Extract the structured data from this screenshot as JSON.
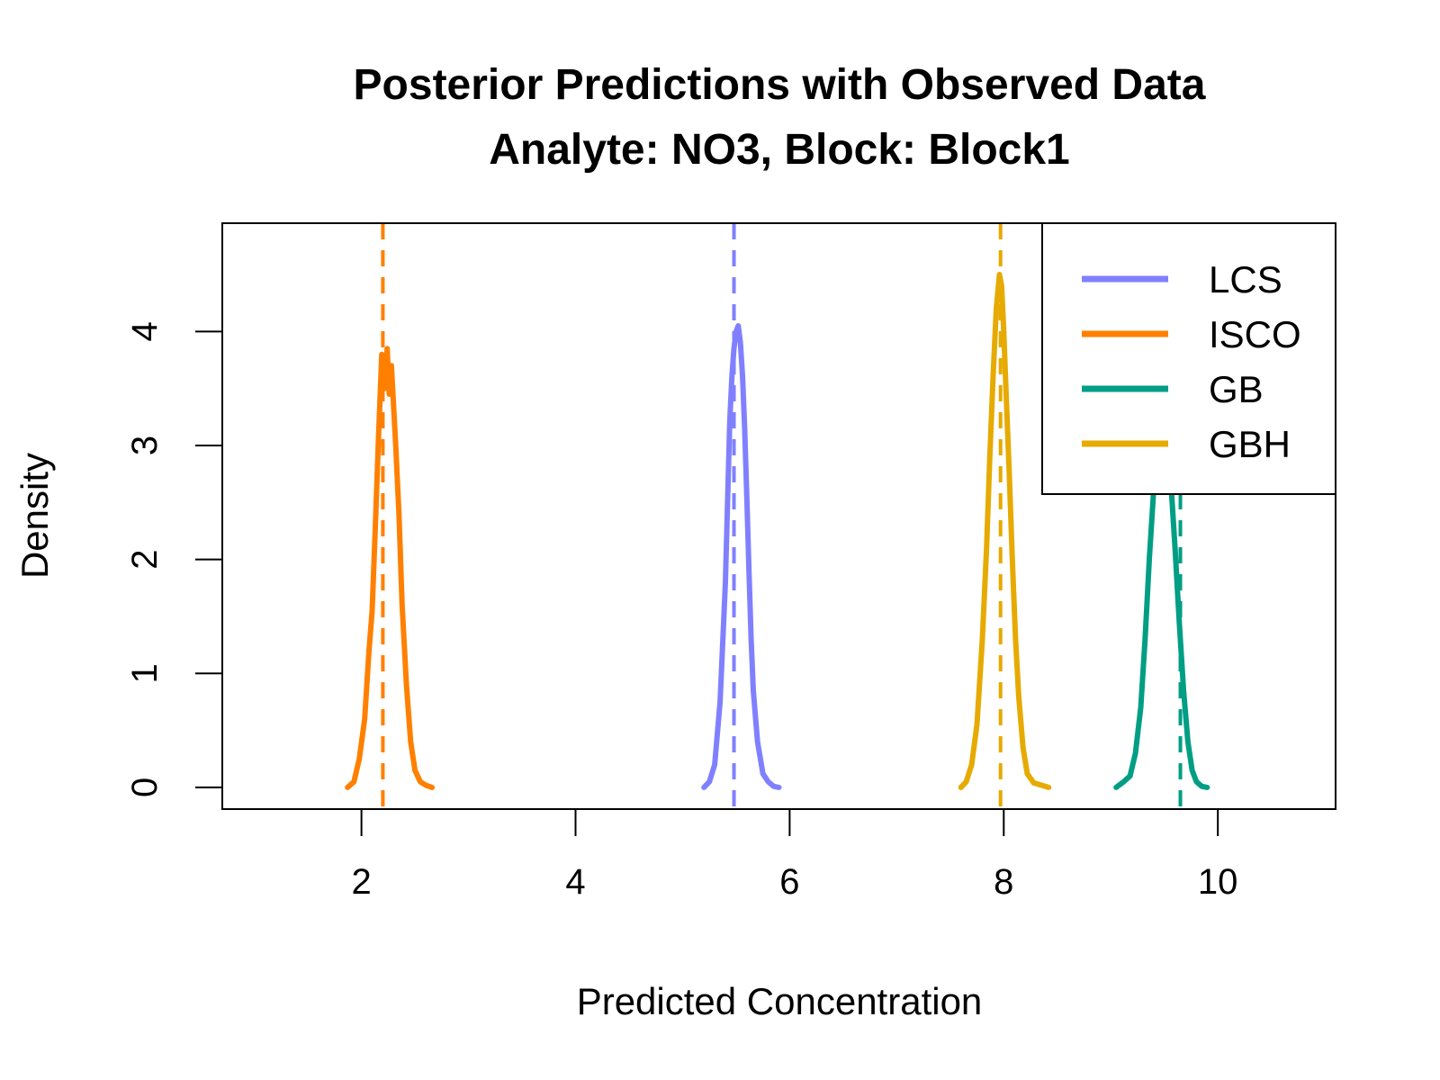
{
  "chart_data": {
    "type": "line",
    "title": "Posterior Predictions with Observed Data",
    "subtitle": "Analyte: NO3, Block: Block1",
    "xlabel": "Predicted Concentration",
    "ylabel": "Density",
    "xlim": [
      0.7,
      11.1
    ],
    "ylim": [
      -0.19,
      4.95
    ],
    "x_ticks": [
      2,
      4,
      6,
      8,
      10
    ],
    "y_ticks": [
      0,
      1,
      2,
      3,
      4
    ],
    "legend_position": "top-right",
    "series": [
      {
        "name": "LCS",
        "color": "#8080FF",
        "observed": 5.48,
        "x": [
          5.2,
          5.25,
          5.3,
          5.35,
          5.4,
          5.42,
          5.44,
          5.46,
          5.48,
          5.5,
          5.52,
          5.54,
          5.56,
          5.58,
          5.6,
          5.62,
          5.64,
          5.66,
          5.7,
          5.75,
          5.8,
          5.85,
          5.9
        ],
        "y": [
          0.0,
          0.05,
          0.2,
          0.75,
          1.8,
          2.5,
          3.2,
          3.6,
          3.85,
          4.0,
          4.05,
          3.9,
          3.6,
          3.15,
          2.55,
          1.9,
          1.3,
          0.85,
          0.4,
          0.12,
          0.05,
          0.01,
          0.0
        ]
      },
      {
        "name": "ISCO",
        "color": "#FF8000",
        "observed": 2.2,
        "x": [
          1.87,
          1.93,
          1.98,
          2.03,
          2.07,
          2.1,
          2.13,
          2.16,
          2.19,
          2.22,
          2.24,
          2.26,
          2.28,
          2.3,
          2.32,
          2.35,
          2.38,
          2.42,
          2.46,
          2.5,
          2.55,
          2.6,
          2.66
        ],
        "y": [
          0.0,
          0.05,
          0.25,
          0.6,
          1.2,
          1.55,
          2.3,
          3.1,
          3.8,
          3.5,
          3.85,
          3.45,
          3.7,
          3.35,
          3.0,
          2.4,
          1.6,
          0.9,
          0.4,
          0.15,
          0.05,
          0.02,
          0.0
        ]
      },
      {
        "name": "GB",
        "color": "#009E84",
        "observed": 9.65,
        "x": [
          9.05,
          9.12,
          9.18,
          9.23,
          9.28,
          9.32,
          9.36,
          9.4,
          9.44,
          9.48,
          9.52,
          9.56,
          9.6,
          9.64,
          9.68,
          9.72,
          9.76,
          9.8,
          9.85,
          9.9
        ],
        "y": [
          0.0,
          0.05,
          0.1,
          0.3,
          0.7,
          1.3,
          2.0,
          2.6,
          3.0,
          3.2,
          3.1,
          2.7,
          2.1,
          1.45,
          0.85,
          0.4,
          0.15,
          0.05,
          0.01,
          0.0
        ]
      },
      {
        "name": "GBH",
        "color": "#E6AA00",
        "observed": 7.97,
        "x": [
          7.6,
          7.65,
          7.7,
          7.75,
          7.8,
          7.84,
          7.87,
          7.9,
          7.93,
          7.96,
          7.98,
          8.0,
          8.02,
          8.05,
          8.08,
          8.11,
          8.14,
          8.18,
          8.22,
          8.28,
          8.35,
          8.42
        ],
        "y": [
          0.0,
          0.05,
          0.2,
          0.55,
          1.3,
          2.1,
          2.9,
          3.6,
          4.2,
          4.5,
          4.4,
          4.0,
          3.5,
          2.8,
          2.0,
          1.3,
          0.8,
          0.35,
          0.12,
          0.04,
          0.02,
          0.0
        ]
      }
    ]
  }
}
